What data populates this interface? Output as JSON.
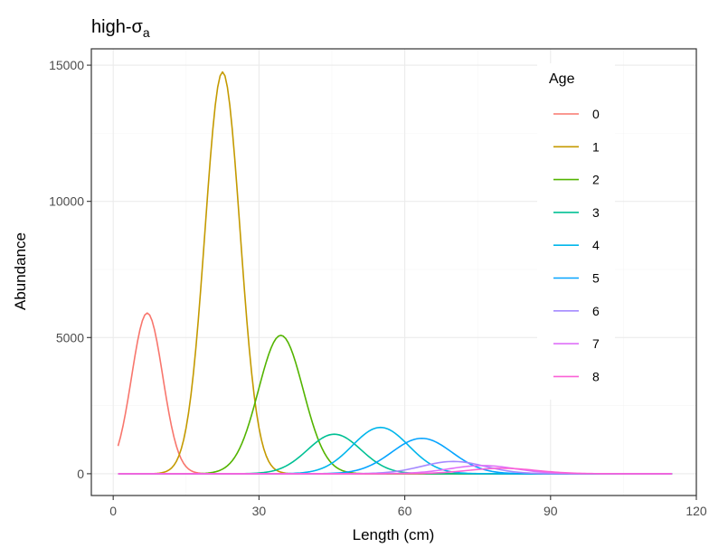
{
  "chart_data": {
    "type": "line",
    "title_main": "high-",
    "title_symbol": "σ",
    "title_sub": "a",
    "xlabel": "Length (cm)",
    "ylabel": "Abundance",
    "xlim": [
      -4.5,
      120
    ],
    "ylim": [
      -800,
      15600
    ],
    "xticks": [
      0,
      30,
      60,
      90,
      120
    ],
    "xtick_labels": [
      "0",
      "30",
      "60",
      "90",
      "120"
    ],
    "yticks": [
      0,
      5000,
      10000,
      15000
    ],
    "ytick_labels": [
      "0",
      "5000",
      "10000",
      "15000"
    ],
    "grid": true,
    "legend_title": "Age",
    "legend_position": "top-right (inside plot)",
    "colors": {
      "panel_border": "#333333",
      "grid_major": "#ebebeb",
      "grid_minor": "#f5f5f5"
    },
    "series": [
      {
        "name": "0",
        "color": "#F8766D",
        "peak_x": 7,
        "peak_y": 5900,
        "sd": 3.2
      },
      {
        "name": "1",
        "color": "#C49A00",
        "peak_x": 22.5,
        "peak_y": 14750,
        "sd": 3.6
      },
      {
        "name": "2",
        "color": "#53B400",
        "peak_x": 34.5,
        "peak_y": 5080,
        "sd": 4.6
      },
      {
        "name": "3",
        "color": "#00C094",
        "peak_x": 45.5,
        "peak_y": 1450,
        "sd": 5.5
      },
      {
        "name": "4",
        "color": "#00B6EB",
        "peak_x": 55,
        "peak_y": 1700,
        "sd": 5.8
      },
      {
        "name": "5",
        "color": "#06A4FF",
        "peak_x": 63.5,
        "peak_y": 1300,
        "sd": 6.2
      },
      {
        "name": "6",
        "color": "#A58AFF",
        "peak_x": 70,
        "peak_y": 450,
        "sd": 6.5
      },
      {
        "name": "7",
        "color": "#DF70F8",
        "peak_x": 76,
        "peak_y": 300,
        "sd": 6.8
      },
      {
        "name": "8",
        "color": "#FB61D7",
        "peak_x": 80,
        "peak_y": 200,
        "sd": 7
      }
    ],
    "x_domain": [
      1,
      115
    ]
  }
}
